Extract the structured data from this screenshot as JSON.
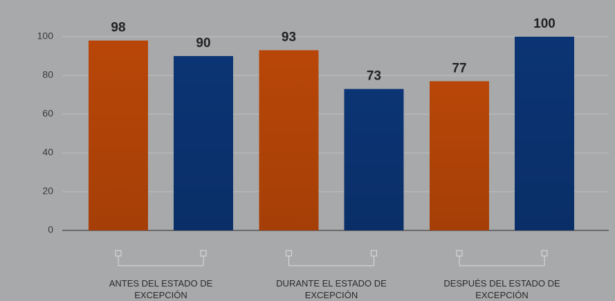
{
  "chart_data": {
    "type": "bar",
    "categories": [
      "ANTES DEL ESTADO DE EXCEPCIÓN",
      "DURANTE EL ESTADO DE EXCEPCIÓN",
      "DESPUÉS DEL ESTADO DE EXCEPCIÓN"
    ],
    "series": [
      {
        "color": "#c24a08",
        "values": [
          98,
          93,
          77
        ]
      },
      {
        "color": "#0c377a",
        "values": [
          90,
          73,
          100
        ]
      }
    ],
    "ylim": [
      0,
      100
    ],
    "yticks": [
      0,
      20,
      40,
      60,
      80,
      100
    ],
    "grid": true
  }
}
